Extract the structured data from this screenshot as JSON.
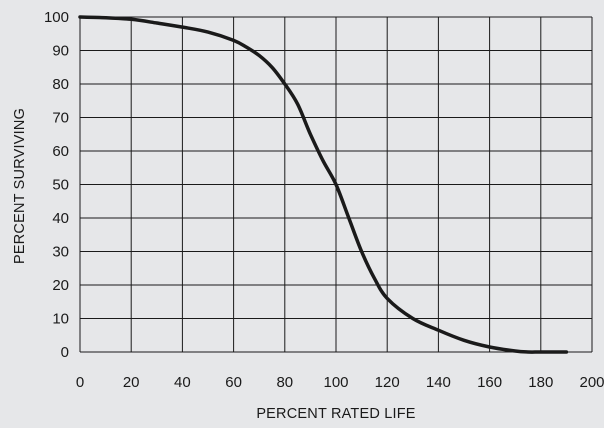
{
  "chart_data": {
    "type": "line",
    "title": "",
    "xlabel": "PERCENT RATED LIFE",
    "ylabel": "PERCENT SURVIVING",
    "xlim": [
      0,
      200
    ],
    "ylim": [
      0,
      100
    ],
    "xticks": [
      0,
      20,
      40,
      60,
      80,
      100,
      120,
      140,
      160,
      180,
      200
    ],
    "yticks": [
      0,
      10,
      20,
      30,
      40,
      50,
      60,
      70,
      80,
      90,
      100
    ],
    "grid": true,
    "colors": {
      "background": "#e6e7e9",
      "grid": "#1a1a1a",
      "line": "#1a1a1a"
    },
    "series": [
      {
        "x": [
          0,
          10,
          20,
          30,
          40,
          50,
          60,
          65,
          70,
          75,
          80,
          85,
          90,
          95,
          100,
          105,
          110,
          115,
          120,
          130,
          140,
          150,
          160,
          170,
          175,
          180,
          190
        ],
        "y": [
          100,
          99.8,
          99.3,
          98.2,
          97,
          95.5,
          93,
          91,
          88.5,
          85,
          80,
          74,
          65,
          57,
          50,
          40,
          30,
          22,
          16,
          10,
          6.5,
          3.5,
          1.5,
          0.3,
          0,
          0,
          0
        ]
      }
    ]
  }
}
